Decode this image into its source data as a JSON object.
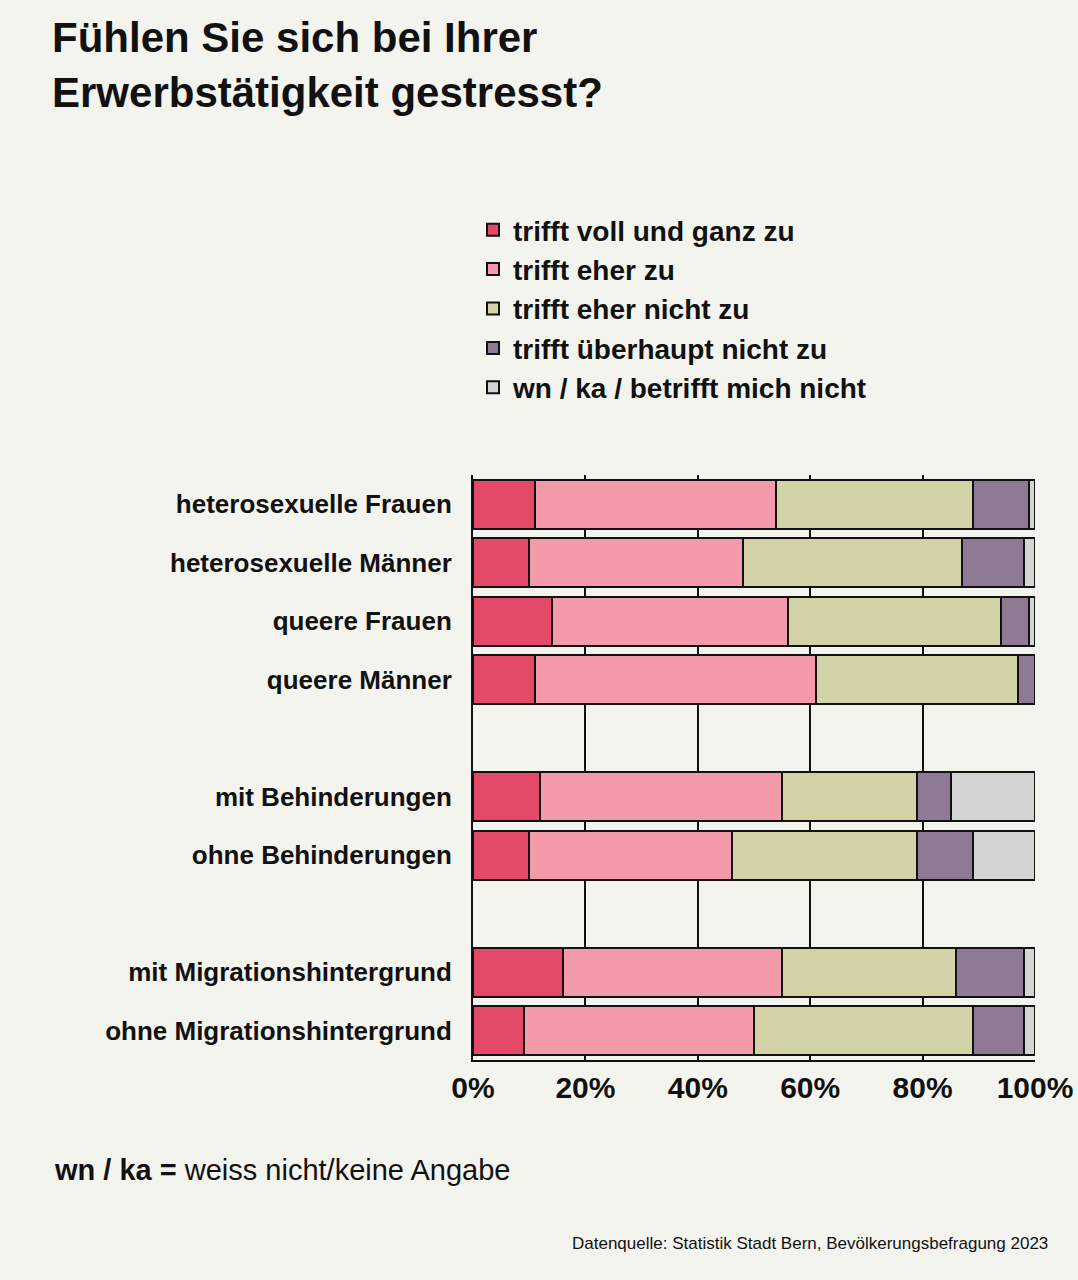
{
  "chart_data": {
    "type": "bar",
    "orientation": "horizontal",
    "stacked": true,
    "grid": true,
    "legend": "top",
    "data_labels": false,
    "title": "Fühlen Sie sich bei Ihrer\nErwerbstätigkeit gestresst?",
    "categories": [
      "heterosexuelle Frauen",
      "heterosexuelle Männer",
      "queere Frauen",
      "queere Männer",
      null,
      "mit Behinderungen",
      "ohne Behinderungen",
      null,
      "mit Migrationshintergrund",
      "ohne Migrationshintergrund"
    ],
    "series": [
      {
        "name": "trifft voll und ganz zu",
        "color": "#e4496a",
        "values": [
          11,
          10,
          14,
          11,
          null,
          12,
          10,
          null,
          16,
          9
        ]
      },
      {
        "name": "trifft eher zu",
        "color": "#f29aaa",
        "values": [
          43,
          38,
          42,
          50,
          null,
          43,
          36,
          null,
          39,
          41
        ]
      },
      {
        "name": "trifft eher nicht zu",
        "color": "#d3d1a6",
        "values": [
          35,
          39,
          38,
          36,
          null,
          24,
          33,
          null,
          31,
          39
        ]
      },
      {
        "name": "trifft überhaupt nicht zu",
        "color": "#8f7a96",
        "values": [
          10,
          11,
          5,
          3,
          null,
          6,
          10,
          null,
          12,
          9
        ]
      },
      {
        "name": "wn / ka / betrifft mich nicht",
        "color": "#d3d4d4",
        "values": [
          1,
          2,
          1,
          0,
          null,
          15,
          11,
          null,
          2,
          2
        ]
      }
    ],
    "xlim": [
      0,
      100
    ],
    "xticks": [
      {
        "value": 0,
        "label": "0%"
      },
      {
        "value": 20,
        "label": "20%"
      },
      {
        "value": 40,
        "label": "40%"
      },
      {
        "value": 60,
        "label": "60%"
      },
      {
        "value": 80,
        "label": "80%"
      },
      {
        "value": 100,
        "label": "100%"
      }
    ],
    "footnote": {
      "term": "wn / ka =",
      "definition": "weiss nicht/keine Angabe"
    },
    "source": "Datenquelle: Statistik Stadt Bern, Bevölkerungsbefragung 2023"
  }
}
